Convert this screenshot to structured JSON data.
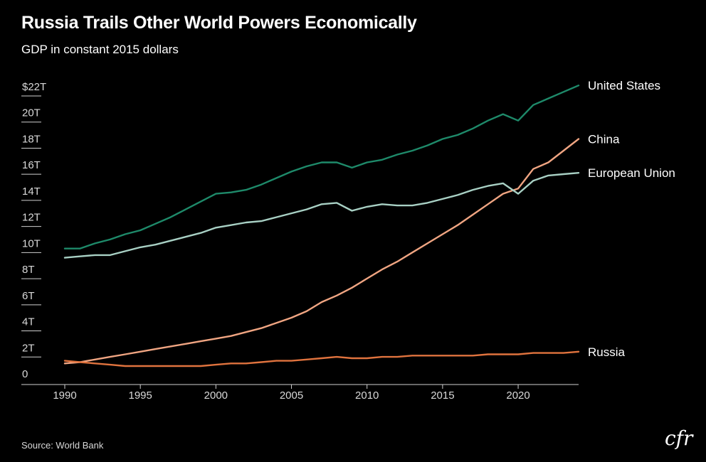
{
  "title": "Russia Trails Other World Powers Economically",
  "subtitle": "GDP in constant 2015 dollars",
  "source": "Source: World Bank",
  "logo_text": "cfr",
  "chart_data": {
    "type": "line",
    "title": "Russia Trails Other World Powers Economically",
    "subtitle": "GDP in constant 2015 dollars",
    "xlabel": "",
    "ylabel": "",
    "xlim": [
      1990,
      2024
    ],
    "ylim": [
      0,
      22
    ],
    "grid": false,
    "legend": "direct labels at right end of lines",
    "x_ticks": [
      1990,
      1995,
      2000,
      2005,
      2010,
      2015,
      2020
    ],
    "x_tick_labels": [
      "1990",
      "1995",
      "2000",
      "2005",
      "2010",
      "2015",
      "2020"
    ],
    "y_ticks": [
      0,
      2,
      4,
      6,
      8,
      10,
      12,
      14,
      16,
      18,
      20,
      22
    ],
    "y_tick_labels": [
      "0",
      "2T",
      "4T",
      "6T",
      "8T",
      "10T",
      "12T",
      "14T",
      "16T",
      "18T",
      "20T",
      "$22T"
    ],
    "x": [
      1990,
      1991,
      1992,
      1993,
      1994,
      1995,
      1996,
      1997,
      1998,
      1999,
      2000,
      2001,
      2002,
      2003,
      2004,
      2005,
      2006,
      2007,
      2008,
      2009,
      2010,
      2011,
      2012,
      2013,
      2014,
      2015,
      2016,
      2017,
      2018,
      2019,
      2020,
      2021,
      2022,
      2023,
      2024
    ],
    "series": [
      {
        "name": "United States",
        "color": "#1e8a6a",
        "values": [
          9.6,
          9.6,
          10.0,
          10.3,
          10.7,
          11.0,
          11.5,
          12.0,
          12.6,
          13.2,
          13.8,
          13.9,
          14.1,
          14.5,
          15.0,
          15.5,
          15.9,
          16.2,
          16.2,
          15.8,
          16.2,
          16.4,
          16.8,
          17.1,
          17.5,
          18.0,
          18.3,
          18.8,
          19.4,
          19.9,
          19.4,
          20.6,
          21.1,
          21.6,
          22.1
        ]
      },
      {
        "name": "China",
        "color": "#f0a582",
        "values": [
          0.8,
          0.9,
          1.1,
          1.3,
          1.5,
          1.7,
          1.9,
          2.1,
          2.3,
          2.5,
          2.7,
          2.9,
          3.2,
          3.5,
          3.9,
          4.3,
          4.8,
          5.5,
          6.0,
          6.6,
          7.3,
          8.0,
          8.6,
          9.3,
          10.0,
          10.7,
          11.4,
          12.2,
          13.0,
          13.8,
          14.2,
          15.7,
          16.2,
          17.1,
          18.0
        ]
      },
      {
        "name": "European Union",
        "color": "#a8d0c4",
        "values": [
          8.9,
          9.0,
          9.1,
          9.1,
          9.4,
          9.7,
          9.9,
          10.2,
          10.5,
          10.8,
          11.2,
          11.4,
          11.6,
          11.7,
          12.0,
          12.3,
          12.6,
          13.0,
          13.1,
          12.5,
          12.8,
          13.0,
          12.9,
          12.9,
          13.1,
          13.4,
          13.7,
          14.1,
          14.4,
          14.6,
          13.8,
          14.8,
          15.2,
          15.3,
          15.4
        ]
      },
      {
        "name": "Russia",
        "color": "#e0733e",
        "values": [
          1.0,
          0.9,
          0.8,
          0.7,
          0.6,
          0.6,
          0.6,
          0.6,
          0.6,
          0.6,
          0.7,
          0.8,
          0.8,
          0.9,
          1.0,
          1.0,
          1.1,
          1.2,
          1.3,
          1.2,
          1.2,
          1.3,
          1.3,
          1.4,
          1.4,
          1.4,
          1.4,
          1.4,
          1.5,
          1.5,
          1.5,
          1.6,
          1.6,
          1.6,
          1.7
        ]
      }
    ]
  }
}
